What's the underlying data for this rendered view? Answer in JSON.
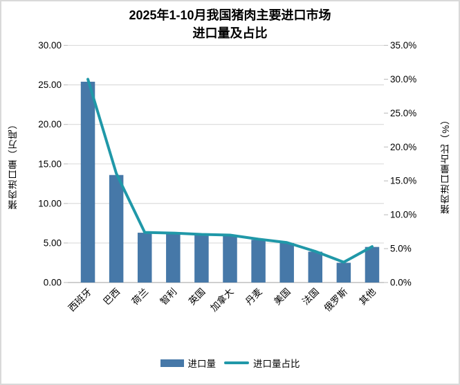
{
  "title": {
    "line1": "2025年1-10月我国猪肉主要进口市场",
    "line2": "进口量及占比"
  },
  "left_axis": {
    "title": "猪肉进口量（万吨）",
    "tick_labels": [
      "0.00",
      "5.00",
      "10.00",
      "15.00",
      "20.00",
      "25.00",
      "30.00"
    ],
    "min": 0,
    "max": 30,
    "step": 5
  },
  "right_axis": {
    "title": "猪肉进口量占比（%）",
    "tick_labels": [
      "0.0%",
      "5.0%",
      "10.0%",
      "15.0%",
      "20.0%",
      "25.0%",
      "30.0%",
      "35.0%"
    ],
    "min": 0,
    "max": 35,
    "step": 5
  },
  "legend": {
    "items": [
      {
        "label": "进口量",
        "type": "bar"
      },
      {
        "label": "进口量占比",
        "type": "line"
      }
    ]
  },
  "colors": {
    "bar": "#4678A8",
    "line": "#2098A8",
    "gridline": "#D9D9D9",
    "axis_line": "#BFBFBF",
    "text": "#000000",
    "frame_border": "#D9D9D9",
    "background": "#FFFFFF"
  },
  "chart_data": {
    "type": "bar",
    "subtype": "bar-line-combo",
    "title": "2025年1-10月我国猪肉主要进口市场进口量及占比",
    "categories": [
      "西班牙",
      "巴西",
      "荷兰",
      "智利",
      "英国",
      "加拿大",
      "丹麦",
      "美国",
      "法国",
      "俄罗斯",
      "其他"
    ],
    "series": [
      {
        "name": "进口量",
        "type": "bar",
        "axis": "left",
        "unit": "万吨",
        "values": [
          25.4,
          13.6,
          6.3,
          6.2,
          6.0,
          5.9,
          5.4,
          5.0,
          3.9,
          2.5,
          4.5
        ]
      },
      {
        "name": "进口量占比",
        "type": "line",
        "axis": "right",
        "unit": "%",
        "values": [
          30.0,
          16.1,
          7.4,
          7.3,
          7.1,
          7.0,
          6.4,
          5.9,
          4.6,
          3.0,
          5.3
        ]
      }
    ],
    "xlabel": "",
    "ylabel_left": "猪肉进口量（万吨）",
    "ylabel_right": "猪肉进口量占比（%）",
    "left_ylim": [
      0,
      30
    ],
    "right_ylim": [
      0,
      35
    ],
    "grid": true,
    "legend_position": "bottom"
  }
}
